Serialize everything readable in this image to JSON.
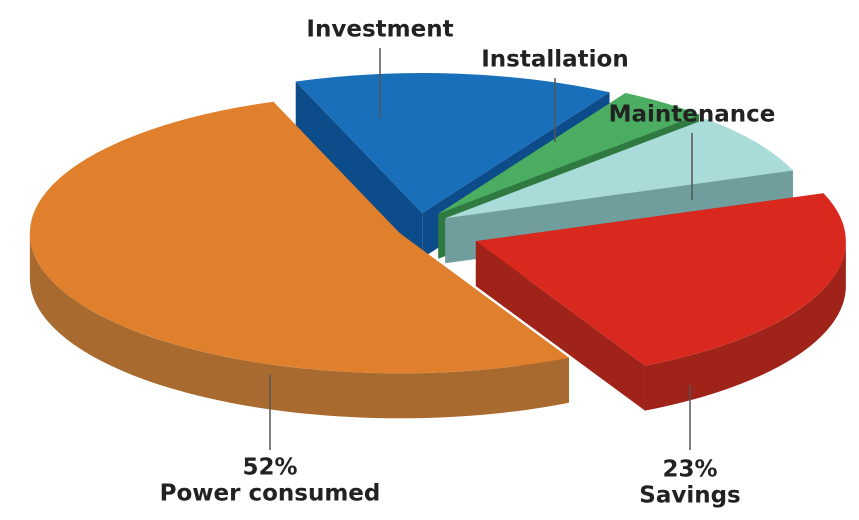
{
  "chart_data": {
    "type": "pie3d",
    "categories": [
      "Investment",
      "Installation",
      "Maintenance",
      "Savings",
      "Power consumed"
    ],
    "values": [
      14,
      4,
      7,
      23,
      52
    ],
    "value_labels": [
      null,
      null,
      null,
      "23%",
      "52%"
    ],
    "colors": [
      "#1a6fba",
      "#4aad62",
      "#a9dbd8",
      "#d9281d",
      "#e07f2c"
    ],
    "side_colors": [
      "#0d4c8a",
      "#2e7a40",
      "#6f9e9c",
      "#a0231a",
      "#a86a2e"
    ]
  }
}
